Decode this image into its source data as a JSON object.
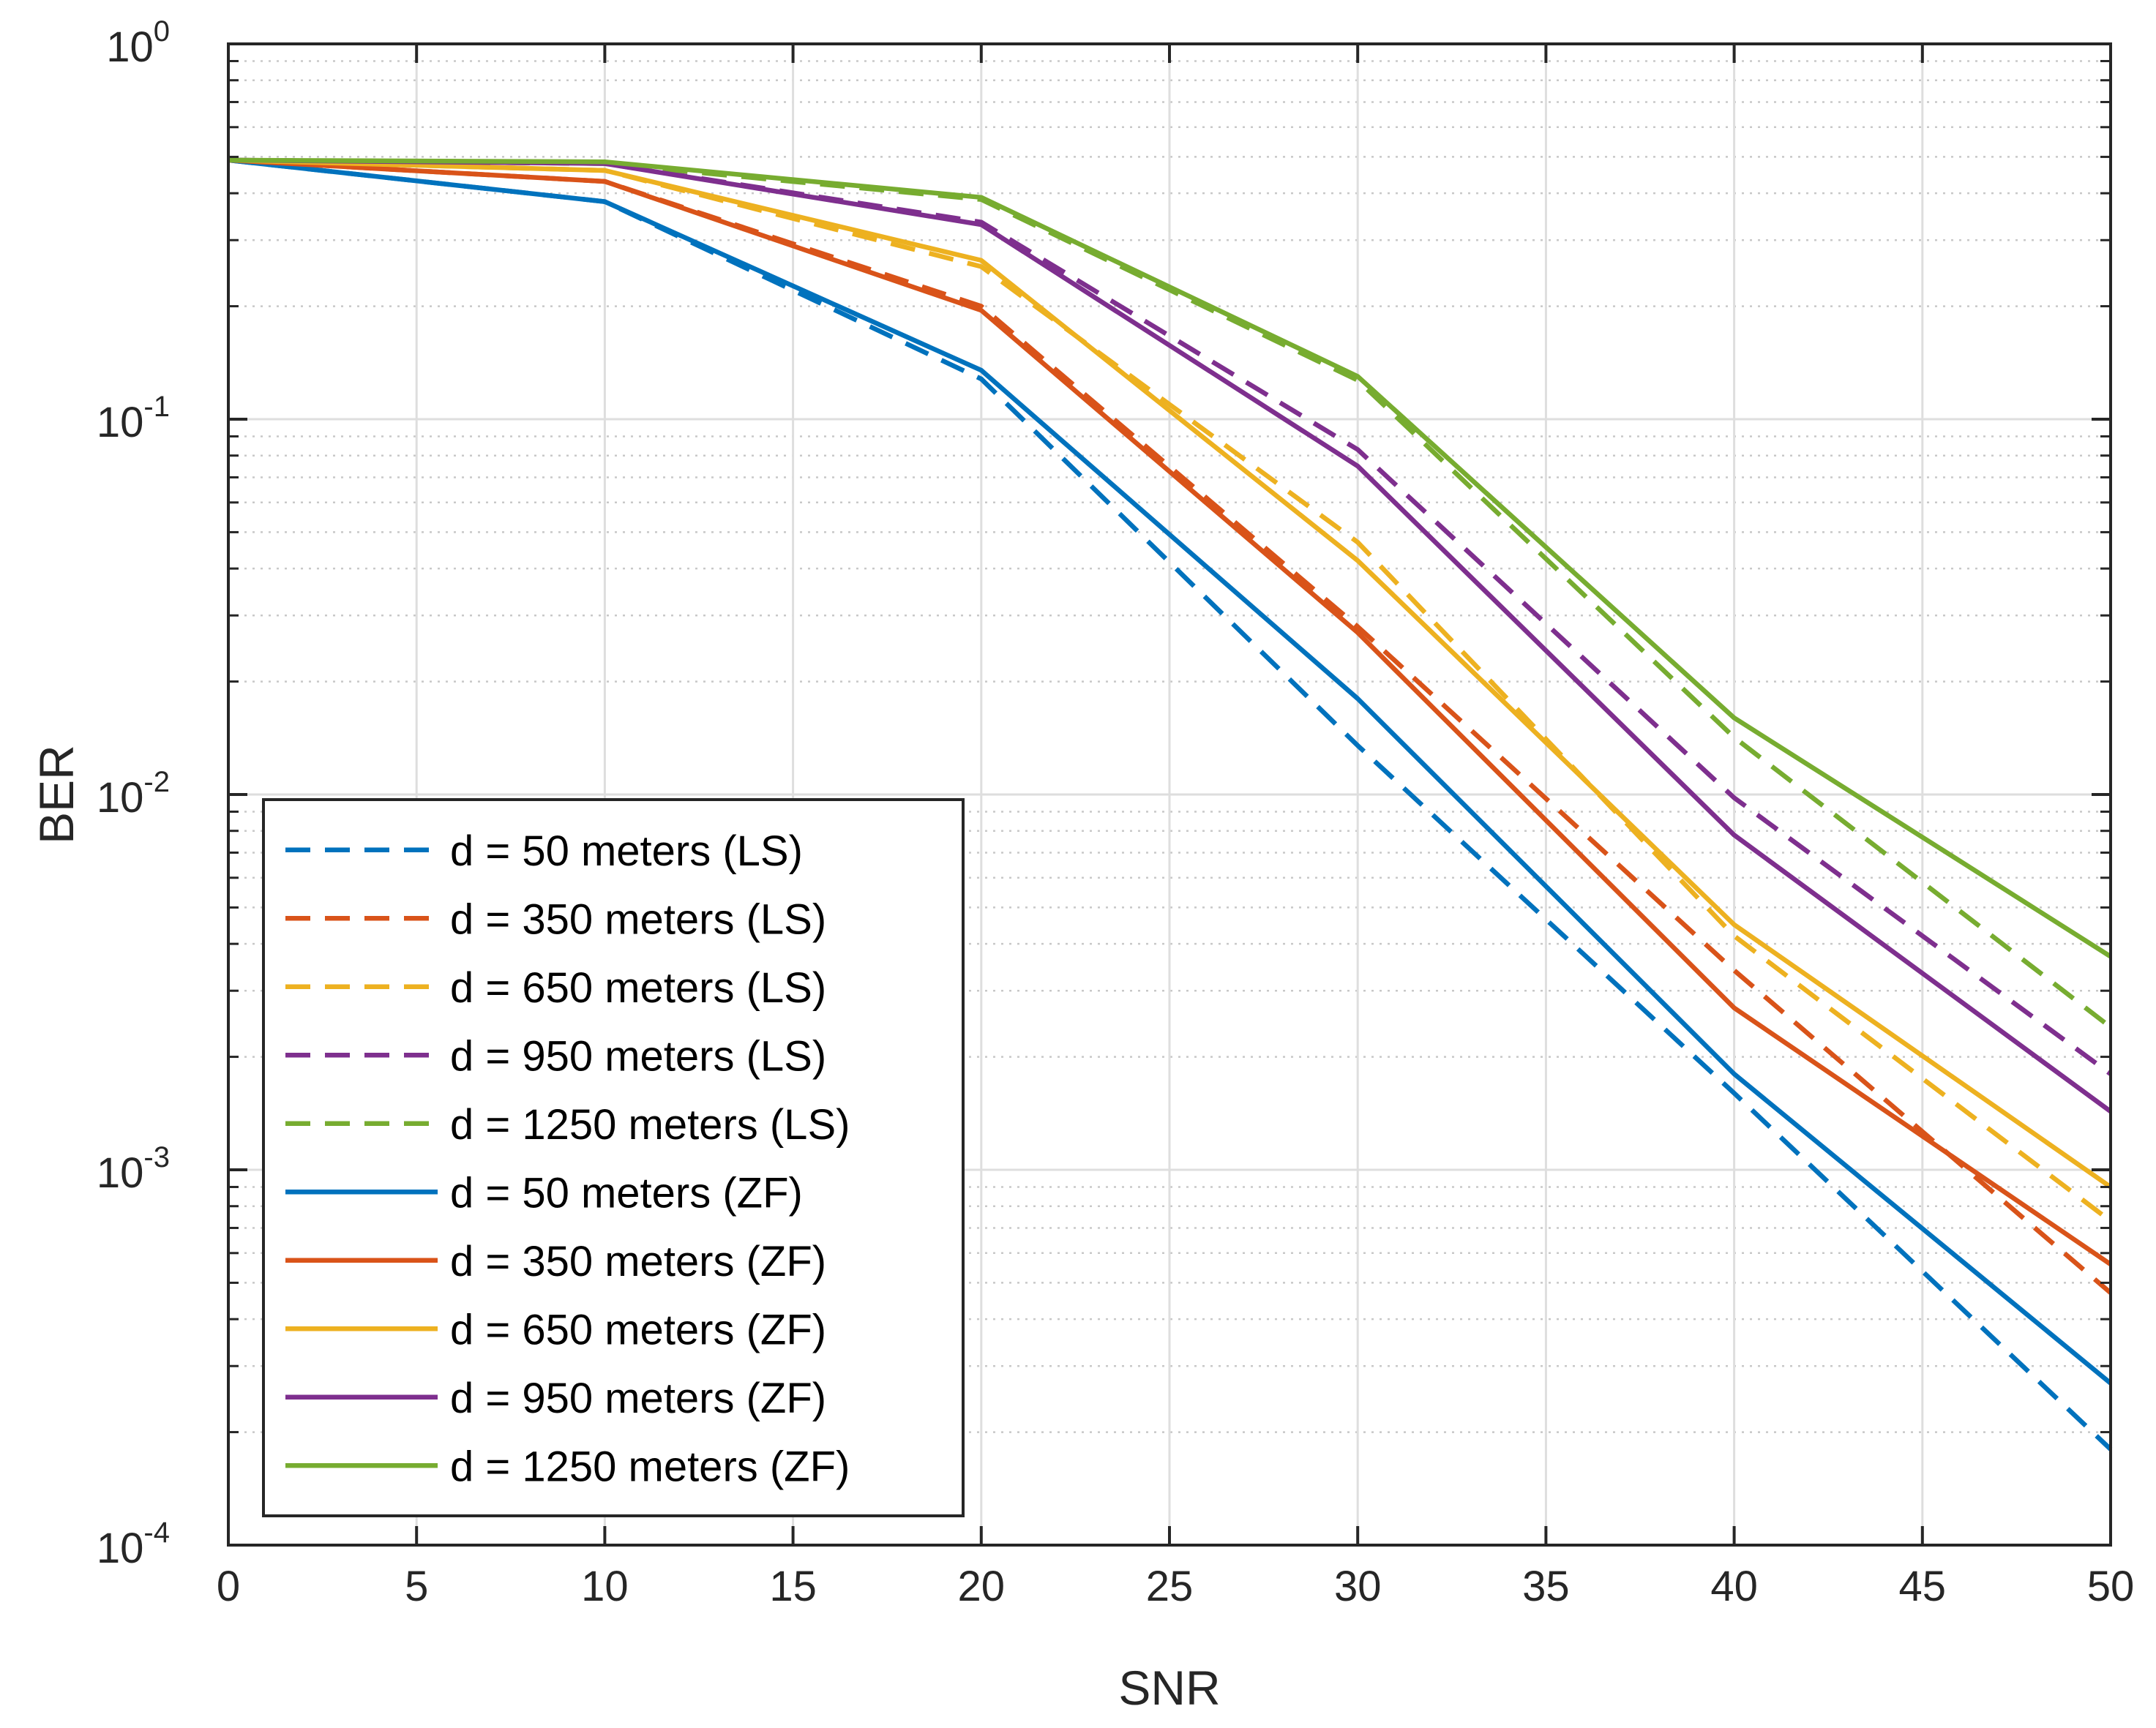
{
  "chart_data": {
    "type": "line",
    "title": "",
    "xlabel": "SNR",
    "ylabel": "BER",
    "x": [
      0,
      10,
      20,
      30,
      40,
      50
    ],
    "xlim": [
      0,
      50
    ],
    "ylim": [
      0.0001,
      1
    ],
    "yscale": "log",
    "grid": true,
    "minor_grid": true,
    "legend_position": "bottom-left",
    "x_ticks": [
      {
        "value": 0,
        "label": "0"
      },
      {
        "value": 5,
        "label": "5"
      },
      {
        "value": 10,
        "label": "10"
      },
      {
        "value": 15,
        "label": "15"
      },
      {
        "value": 20,
        "label": "20"
      },
      {
        "value": 25,
        "label": "25"
      },
      {
        "value": 30,
        "label": "30"
      },
      {
        "value": 35,
        "label": "35"
      },
      {
        "value": 40,
        "label": "40"
      },
      {
        "value": 45,
        "label": "45"
      },
      {
        "value": 50,
        "label": "50"
      }
    ],
    "y_ticks": [
      {
        "value": 1,
        "base": "10",
        "exp": "0"
      },
      {
        "value": 0.1,
        "base": "10",
        "exp": "-1"
      },
      {
        "value": 0.01,
        "base": "10",
        "exp": "-2"
      },
      {
        "value": 0.001,
        "base": "10",
        "exp": "-3"
      },
      {
        "value": 0.0001,
        "base": "10",
        "exp": "-4"
      }
    ],
    "series": [
      {
        "name": "d = 50 meters (LS)",
        "color": "#0072BD",
        "style": "dashed",
        "values": [
          0.49,
          0.38,
          0.128,
          0.0135,
          0.0016,
          0.00018
        ]
      },
      {
        "name": "d = 350 meters (LS)",
        "color": "#D95319",
        "style": "dashed",
        "values": [
          0.49,
          0.43,
          0.2,
          0.028,
          0.0034,
          0.00047
        ]
      },
      {
        "name": "d = 650 meters (LS)",
        "color": "#EDB120",
        "style": "dashed",
        "values": [
          0.49,
          0.46,
          0.255,
          0.047,
          0.0042,
          0.00073
        ]
      },
      {
        "name": "d = 950 meters (LS)",
        "color": "#7E2F8E",
        "style": "dashed",
        "values": [
          0.49,
          0.48,
          0.335,
          0.083,
          0.0098,
          0.0018
        ]
      },
      {
        "name": "d = 1250 meters (LS)",
        "color": "#77AC30",
        "style": "dashed",
        "values": [
          0.49,
          0.48,
          0.385,
          0.127,
          0.0142,
          0.0024
        ]
      },
      {
        "name": "d = 50 meters (ZF)",
        "color": "#0072BD",
        "style": "solid",
        "values": [
          0.49,
          0.38,
          0.135,
          0.018,
          0.0018,
          0.00027
        ]
      },
      {
        "name": "d = 350 meters (ZF)",
        "color": "#D95319",
        "style": "solid",
        "values": [
          0.49,
          0.43,
          0.195,
          0.027,
          0.0027,
          0.00056
        ]
      },
      {
        "name": "d = 650 meters (ZF)",
        "color": "#EDB120",
        "style": "solid",
        "values": [
          0.49,
          0.46,
          0.265,
          0.042,
          0.0045,
          0.0009
        ]
      },
      {
        "name": "d = 950 meters (ZF)",
        "color": "#7E2F8E",
        "style": "solid",
        "values": [
          0.49,
          0.48,
          0.33,
          0.075,
          0.0078,
          0.00143
        ]
      },
      {
        "name": "d = 1250 meters (ZF)",
        "color": "#77AC30",
        "style": "solid",
        "values": [
          0.49,
          0.485,
          0.39,
          0.13,
          0.016,
          0.0037
        ]
      }
    ]
  }
}
